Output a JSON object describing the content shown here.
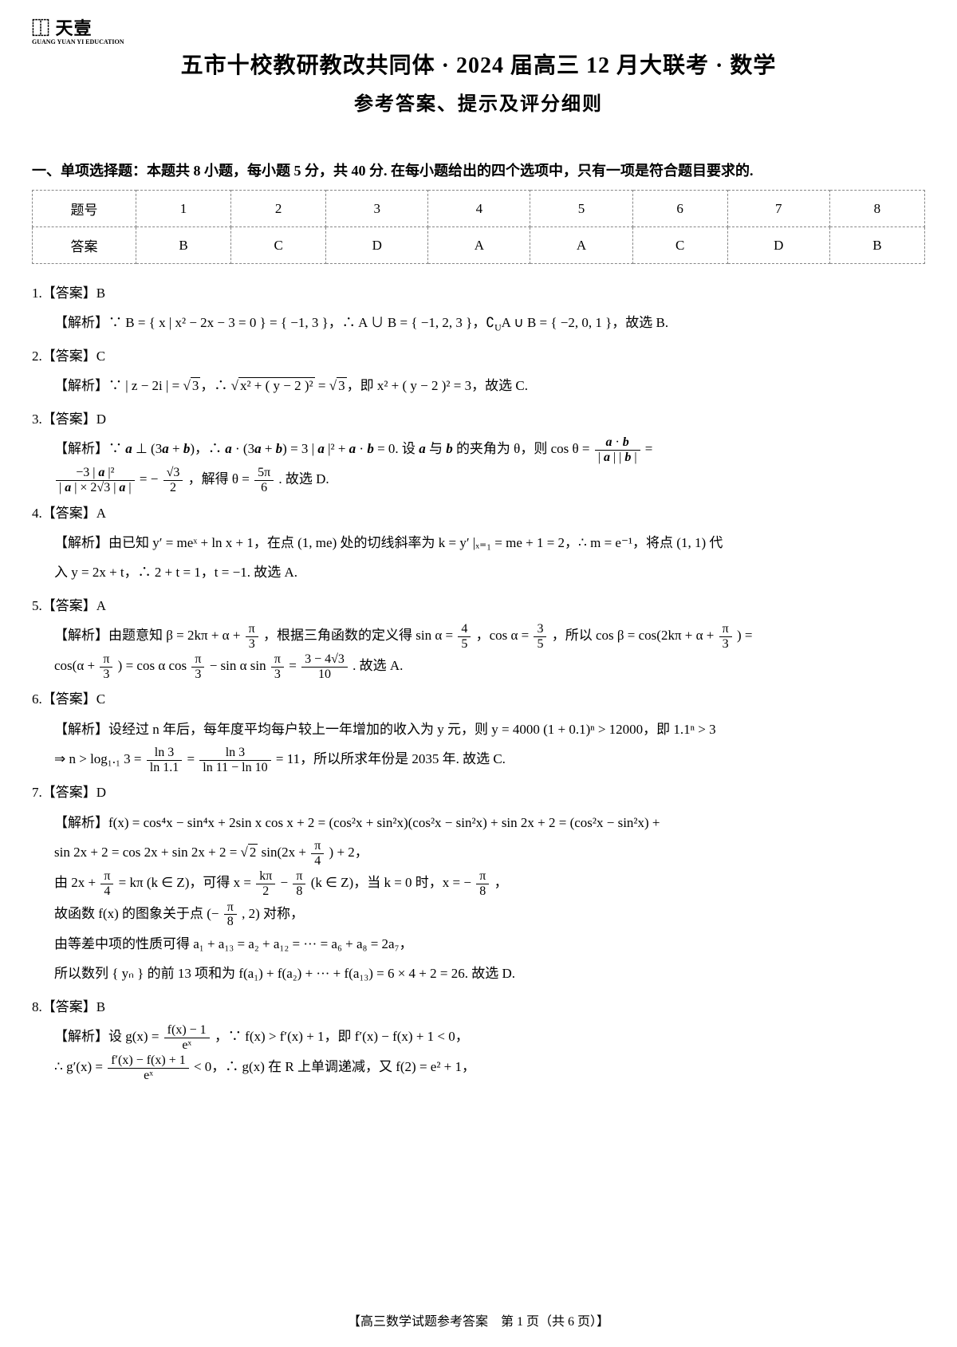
{
  "logo": {
    "main": "⿰ 天壹",
    "sub": "GUANG YUAN YI EDUCATION"
  },
  "title": "五市十校教研教改共同体 · 2024 届高三 12 月大联考 · 数学",
  "subtitle": "参考答案、提示及评分细则",
  "section1_header": "一、单项选择题：本题共 8 小题，每小题 5 分，共 40 分. 在每小题给出的四个选项中，只有一项是符合题目要求的.",
  "answer_table": {
    "row1_label": "题号",
    "row2_label": "答案",
    "nums": [
      "1",
      "2",
      "3",
      "4",
      "5",
      "6",
      "7",
      "8"
    ],
    "ans": [
      "B",
      "C",
      "D",
      "A",
      "A",
      "C",
      "D",
      "B"
    ]
  },
  "q1": {
    "ans": "1.【答案】B",
    "exp_prefix": "【解析】",
    "exp": "∵ B = { x | x² − 2x − 3 = 0 } = { −1, 3 }，∴ A ∪ B = { −1, 2, 3 }，∁",
    "exp_sub": "U",
    "exp_tail": "A ∪ B = { −2, 0, 1 }，故选 B."
  },
  "q2": {
    "ans": "2.【答案】C",
    "exp_prefix": "【解析】",
    "p1": "∵ | z − 2i | = ",
    "sqrt3": "3",
    "p2": "，∴ ",
    "sqrt_expr": "x² + ( y − 2 )²",
    "p3": " = ",
    "p4": "，即 x² + ( y − 2 )² = 3，故选 C."
  },
  "q3": {
    "ans": "3.【答案】D",
    "exp_prefix": "【解析】",
    "l1a": "∵ a ⊥ (3a + b)，∴ a · (3a + b) = 3 | a |² + a · b = 0. 设 a 与 b 的夹角为 θ，则 cos θ = ",
    "frac1_num": "a · b",
    "frac1_den": "| a | | b |",
    "l1b": " =",
    "frac2_num": "−3 | a |²",
    "frac2_den": "| a | × 2√3 | a |",
    "l2a": " = −",
    "frac3_num": "√3",
    "frac3_den": "2",
    "l2b": "，解得 θ = ",
    "frac4_num": "5π",
    "frac4_den": "6",
    "l2c": ". 故选 D."
  },
  "q4": {
    "ans": "4.【答案】A",
    "exp_prefix": "【解析】",
    "l1": "由已知 y′ = meˣ + ln x + 1，在点 (1, me) 处的切线斜率为 k = y′ |ₓ₌₁ = me + 1 = 2，∴ m = e⁻¹，将点 (1, 1) 代",
    "l2": "入 y = 2x + t，∴ 2 + t = 1，t = −1. 故选 A."
  },
  "q5": {
    "ans": "5.【答案】A",
    "exp_prefix": "【解析】",
    "l1a": "由题意知 β = 2kπ + α + ",
    "pi3_num": "π",
    "pi3_den": "3",
    "l1b": "，根据三角函数的定义得 sin α = ",
    "f45_num": "4",
    "f45_den": "5",
    "l1c": "，cos α = ",
    "f35_num": "3",
    "f35_den": "5",
    "l1d": "，所以 cos β = cos(2kπ + α + ",
    "l1e": ") =",
    "l2a": "cos(α + ",
    "l2b": ") = cos α cos ",
    "l2c": " − sin α sin ",
    "l2d": " = ",
    "res_num": "3 − 4√3",
    "res_den": "10",
    "l2e": ". 故选 A."
  },
  "q6": {
    "ans": "6.【答案】C",
    "exp_prefix": "【解析】",
    "l1": "设经过 n 年后，每年度平均每户较上一年增加的收入为 y 元，则 y = 4000 (1 + 0.1)ⁿ > 12000，即 1.1ⁿ > 3",
    "l2a": "⇒ n > log₁.₁ 3 = ",
    "f1_num": "ln 3",
    "f1_den": "ln 1.1",
    "l2b": " = ",
    "f2_num": "ln 3",
    "f2_den": "ln 11 − ln 10",
    "l2c": " = 11，所以所求年份是 2035 年. 故选 C."
  },
  "q7": {
    "ans": "7.【答案】D",
    "exp_prefix": "【解析】",
    "l1": "f(x) = cos⁴x − sin⁴x + 2sin x cos x + 2 = (cos²x + sin²x)(cos²x − sin²x) + sin 2x + 2 = (cos²x − sin²x) +",
    "l2a": "sin 2x + 2 = cos 2x + sin 2x + 2 = ",
    "sqrt2": "2",
    "l2b": " sin(2x + ",
    "pi4_num": "π",
    "pi4_den": "4",
    "l2c": ") + 2，",
    "l3a": "由 2x + ",
    "l3b": " = kπ (k ∈ Z)，可得 x = ",
    "kpi2_num": "kπ",
    "kpi2_den": "2",
    "l3c": " − ",
    "pi8_num": "π",
    "pi8_den": "8",
    "l3d": " (k ∈ Z)，当 k = 0 时，x = −",
    "l3e": "，",
    "l4a": "故函数 f(x) 的图象关于点 (−",
    "l4b": ", 2) 对称，",
    "l5": "由等差中项的性质可得 a₁ + a₁₃ = a₂ + a₁₂ = ··· = a₆ + a₈ = 2a₇，",
    "l6": "所以数列 { yₙ } 的前 13 项和为 f(a₁) + f(a₂) + ··· + f(a₁₃) = 6 × 4 + 2 = 26. 故选 D."
  },
  "q8": {
    "ans": "8.【答案】B",
    "exp_prefix": "【解析】",
    "l1a": "设 g(x) = ",
    "g_num": "f(x) − 1",
    "g_den": "eˣ",
    "l1b": "，∵ f(x) > f′(x) + 1，即 f′(x) − f(x) + 1 < 0，",
    "l2a": "∴ g′(x) = ",
    "gp_num": "f′(x) − f(x) + 1",
    "gp_den": "eˣ",
    "l2b": " < 0，∴ g(x) 在 R 上单调递减，又 f(2) = e² + 1，"
  },
  "footer": "【高三数学试题参考答案　第 1 页（共 6 页）】"
}
